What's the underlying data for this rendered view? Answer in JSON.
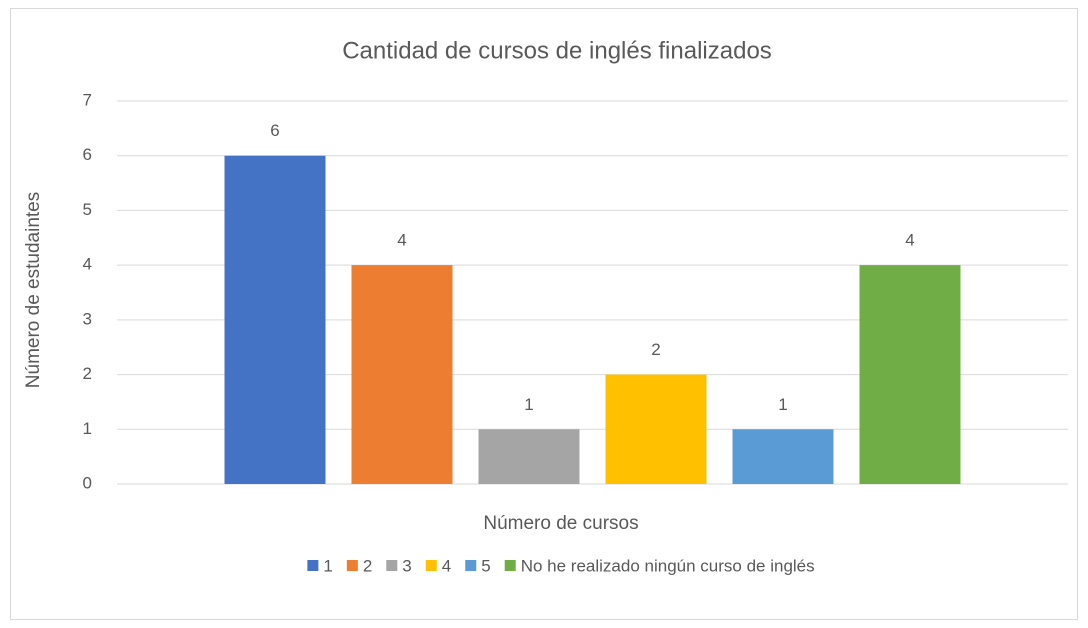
{
  "chart_data": {
    "type": "bar",
    "title": "Cantidad de cursos de inglés finalizados",
    "x_label": "Número de cursos",
    "y_label": "Número de estudaintes",
    "categories": [
      null
    ],
    "series": [
      {
        "name": "1",
        "color": "#4472c4",
        "values": [
          6
        ]
      },
      {
        "name": "2",
        "color": "#ed7d31",
        "values": [
          4
        ]
      },
      {
        "name": "3",
        "color": "#a5a5a5",
        "values": [
          1
        ]
      },
      {
        "name": "4",
        "color": "#ffc000",
        "values": [
          2
        ]
      },
      {
        "name": "5",
        "color": "#5b9bd5",
        "values": [
          1
        ]
      },
      {
        "name": "No he realizado ningún curso de inglés",
        "color": "#70ad47",
        "values": [
          4
        ]
      }
    ],
    "ylim": [
      0,
      7
    ],
    "yticks": [
      0,
      1,
      2,
      3,
      4,
      5,
      6,
      7
    ],
    "grid": true,
    "legend": "bottom"
  }
}
